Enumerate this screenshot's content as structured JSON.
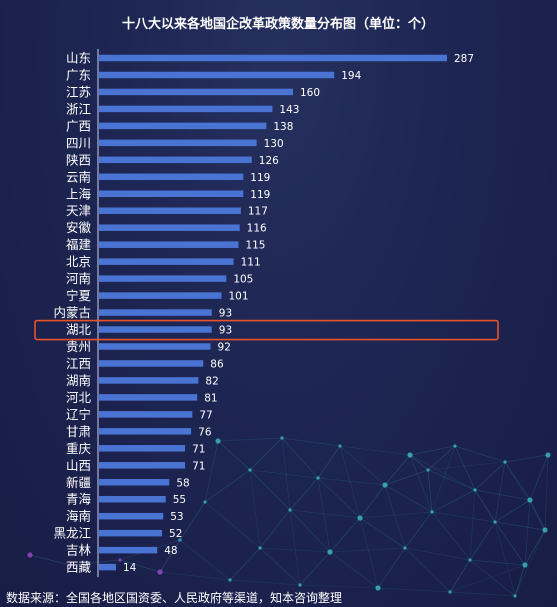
{
  "chart_data": {
    "type": "bar",
    "orientation": "horizontal",
    "title": "十八大以来各地国企改革政策数量分布图（单位：个）",
    "categories": [
      "山东",
      "广东",
      "江苏",
      "浙江",
      "广西",
      "四川",
      "陕西",
      "云南",
      "上海",
      "天津",
      "安徽",
      "福建",
      "北京",
      "河南",
      "宁夏",
      "内蒙古",
      "湖北",
      "贵州",
      "江西",
      "湖南",
      "河北",
      "辽宁",
      "甘肃",
      "重庆",
      "山西",
      "新疆",
      "青海",
      "海南",
      "黑龙江",
      "吉林",
      "西藏"
    ],
    "values": [
      287,
      194,
      160,
      143,
      138,
      130,
      126,
      119,
      119,
      117,
      116,
      115,
      111,
      105,
      101,
      93,
      93,
      92,
      86,
      82,
      81,
      77,
      76,
      71,
      71,
      58,
      55,
      53,
      52,
      48,
      14
    ],
    "highlight": "湖北",
    "grid": false,
    "legend": "none"
  },
  "source": "数据来源：全国各地区国资委、人民政府等渠道，知本咨询整理",
  "colors": {
    "bar": "#4a74d3",
    "highlight_box": "#e8532a",
    "axis_line": "#c8d0f0",
    "background": "#1d2552",
    "network": "#3fc3c9"
  }
}
